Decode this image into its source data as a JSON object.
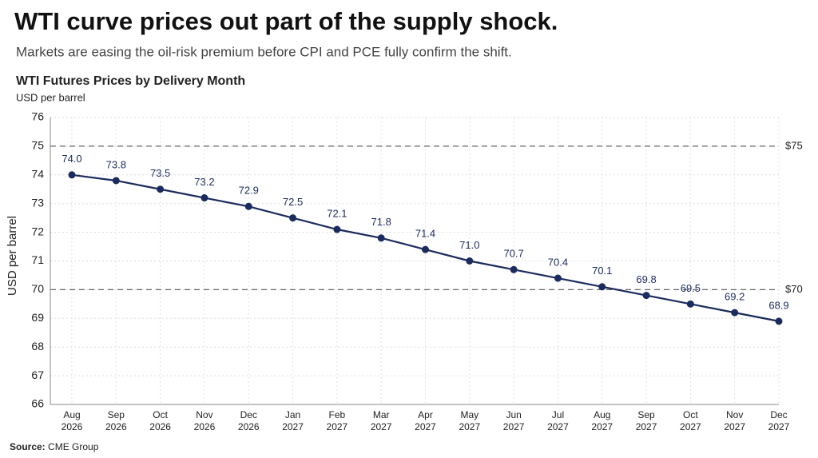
{
  "chart_data": {
    "type": "line",
    "title": "WTI curve prices out part of the supply shock.",
    "subtitle": "Markets are easing the oil-risk premium before CPI and PCE fully confirm the shift.",
    "chart_title": "WTI Futures Prices by Delivery Month",
    "unit_label": "USD per barrel",
    "y_label": "USD per barrel",
    "source_label": "Source:",
    "source": "CME Group",
    "categories": [
      "Aug 2026",
      "Sep 2026",
      "Oct 2026",
      "Nov 2026",
      "Dec 2026",
      "Jan 2027",
      "Feb 2027",
      "Mar 2027",
      "Apr 2027",
      "May 2027",
      "Jun 2027",
      "Jul 2027",
      "Aug 2027",
      "Sep 2027",
      "Oct 2027",
      "Nov 2027",
      "Dec 2027"
    ],
    "values": [
      74.0,
      73.8,
      73.5,
      73.2,
      72.9,
      72.5,
      72.1,
      71.8,
      71.4,
      71.0,
      70.7,
      70.4,
      70.1,
      69.8,
      69.5,
      69.2,
      68.9
    ],
    "value_labels": [
      "74.0",
      "73.8",
      "73.5",
      "73.2",
      "72.9",
      "72.5",
      "72.1",
      "71.8",
      "71.4",
      "71.0",
      "70.7",
      "70.4",
      "70.1",
      "69.8",
      "69.5",
      "69.2",
      "68.9"
    ],
    "color": "#1c2b5e",
    "ylim": [
      66,
      76
    ],
    "yticks": [
      66,
      67,
      68,
      69,
      70,
      71,
      72,
      73,
      74,
      75,
      76
    ],
    "grid": true,
    "reference_lines": [
      {
        "value": 75,
        "label": "$75"
      },
      {
        "value": 70,
        "label": "$70"
      }
    ]
  }
}
